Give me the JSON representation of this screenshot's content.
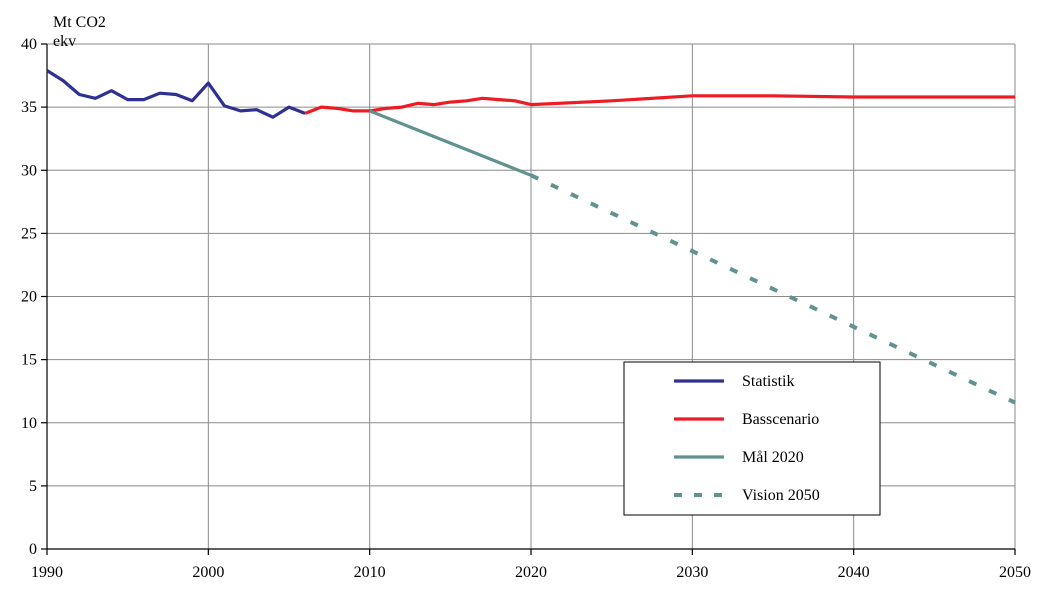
{
  "chart_data": {
    "type": "line",
    "ylabel_lines": [
      "Mt CO2",
      "ekv"
    ],
    "xlim": [
      1990,
      2050
    ],
    "ylim": [
      0,
      40
    ],
    "xticks": [
      1990,
      2000,
      2010,
      2020,
      2030,
      2040,
      2050
    ],
    "yticks": [
      0,
      5,
      10,
      15,
      20,
      25,
      30,
      35,
      40
    ],
    "grid": true,
    "legend_position": "bottom-right",
    "series": [
      {
        "name": "Statistik",
        "color": "#2e3192",
        "dash": "solid",
        "x": [
          1990,
          1991,
          1992,
          1993,
          1994,
          1995,
          1996,
          1997,
          1998,
          1999,
          2000,
          2001,
          2002,
          2003,
          2004,
          2005,
          2006
        ],
        "y": [
          37.9,
          37.1,
          36.0,
          35.7,
          36.3,
          35.6,
          35.6,
          36.1,
          36.0,
          35.5,
          36.9,
          35.1,
          34.7,
          34.8,
          34.2,
          35.0,
          34.5
        ]
      },
      {
        "name": "Basscenario",
        "color": "#ed1c24",
        "dash": "solid",
        "x": [
          2006,
          2007,
          2008,
          2009,
          2010,
          2011,
          2012,
          2013,
          2014,
          2015,
          2016,
          2017,
          2018,
          2019,
          2020,
          2025,
          2030,
          2035,
          2040,
          2045,
          2050
        ],
        "y": [
          34.5,
          35.0,
          34.9,
          34.7,
          34.7,
          34.9,
          35.0,
          35.3,
          35.2,
          35.4,
          35.5,
          35.7,
          35.6,
          35.5,
          35.2,
          35.5,
          35.9,
          35.9,
          35.8,
          35.8,
          35.8
        ]
      },
      {
        "name": "Mål 2020",
        "color": "#5f9290",
        "dash": "solid",
        "x": [
          2010,
          2020
        ],
        "y": [
          34.7,
          29.6
        ]
      },
      {
        "name": "Vision 2050",
        "color": "#5f9290",
        "dash": "dashed",
        "x": [
          2020,
          2050
        ],
        "y": [
          29.6,
          11.6
        ]
      }
    ]
  }
}
